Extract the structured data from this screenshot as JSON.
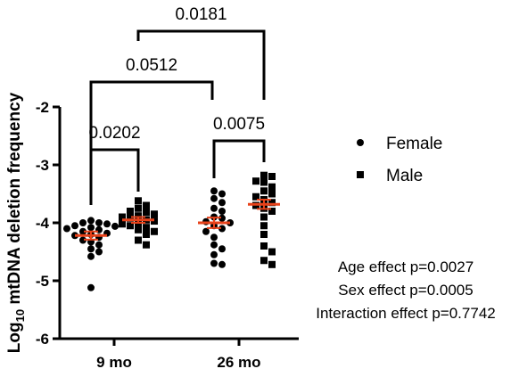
{
  "chart_data": {
    "type": "scatter",
    "ylabel_parts": [
      "Log",
      "10",
      " mtDNA deletion frequency"
    ],
    "ylim": [
      -6,
      -2
    ],
    "yticks": [
      -6,
      -5,
      -4,
      -3,
      -2
    ],
    "categories": [
      "9 mo",
      "26 mo"
    ],
    "series": [
      {
        "name": "Female",
        "marker": "circle",
        "groups": [
          {
            "category": "9 mo",
            "mean": -4.22,
            "sem": 0.07,
            "values": [
              -3.96,
              -4.0,
              -4.0,
              -4.02,
              -4.05,
              -4.06,
              -4.08,
              -4.1,
              -4.12,
              -4.15,
              -4.18,
              -4.2,
              -4.22,
              -4.25,
              -4.3,
              -4.33,
              -4.38,
              -4.45,
              -4.5,
              -4.58,
              -5.12
            ]
          },
          {
            "category": "26 mo",
            "mean": -4.0,
            "sem": 0.09,
            "values": [
              -3.45,
              -3.5,
              -3.58,
              -3.65,
              -3.75,
              -3.8,
              -3.9,
              -3.92,
              -3.98,
              -4.0,
              -4.05,
              -4.1,
              -4.15,
              -4.25,
              -4.38,
              -4.45,
              -4.55,
              -4.7,
              -4.72
            ]
          }
        ]
      },
      {
        "name": "Male",
        "marker": "square",
        "groups": [
          {
            "category": "9 mo",
            "mean": -3.95,
            "sem": 0.05,
            "values": [
              -3.62,
              -3.7,
              -3.75,
              -3.8,
              -3.82,
              -3.85,
              -3.88,
              -3.9,
              -3.92,
              -3.95,
              -3.97,
              -4.0,
              -4.02,
              -4.05,
              -4.08,
              -4.12,
              -4.15,
              -4.2,
              -4.3,
              -4.38
            ]
          },
          {
            "category": "26 mo",
            "mean": -3.68,
            "sem": 0.08,
            "values": [
              -3.18,
              -3.2,
              -3.28,
              -3.3,
              -3.38,
              -3.45,
              -3.5,
              -3.55,
              -3.6,
              -3.65,
              -3.7,
              -3.75,
              -3.8,
              -3.9,
              -4.05,
              -4.2,
              -4.4,
              -4.5,
              -4.65,
              -4.72
            ]
          }
        ]
      }
    ],
    "comparisons": [
      {
        "label": "0.0202",
        "from": "Female 9 mo",
        "to": "Male 9 mo"
      },
      {
        "label": "0.0075",
        "from": "Female 26 mo",
        "to": "Male 26 mo"
      },
      {
        "label": "0.0512",
        "from": "Female 9 mo",
        "to": "Female 26 mo"
      },
      {
        "label": "0.0181",
        "from": "Male 9 mo",
        "to": "Male 26 mo"
      }
    ],
    "stats": [
      "Age effect p=0.0027",
      "Sex effect p=0.0005",
      "Interaction effect p=0.7742"
    ],
    "legend_position": "right",
    "grid": false,
    "point_color": "#000000",
    "mean_color": "#e8421a"
  }
}
